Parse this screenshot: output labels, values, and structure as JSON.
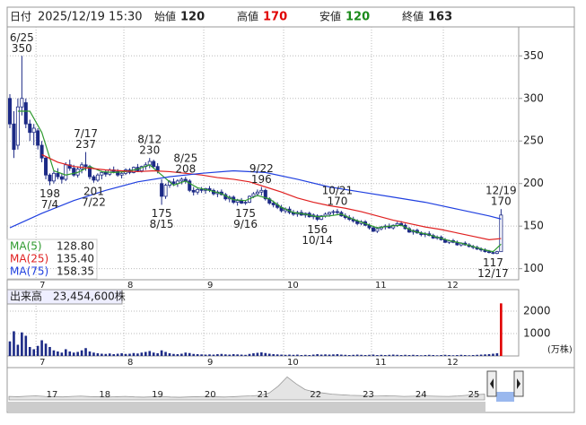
{
  "header": {
    "date_label": "日付",
    "date": "2025/12/19 15:30",
    "open_label": "始値",
    "open": 120,
    "high_label": "高値",
    "high": 170,
    "low_label": "安値",
    "low": 120,
    "close_label": "終値",
    "close": 163
  },
  "chart_data": {
    "type": "candlestick",
    "categories": [
      null,
      null,
      null,
      null,
      null,
      null,
      null,
      "7",
      null,
      null,
      null,
      null,
      null,
      null,
      null,
      null,
      null,
      null,
      null,
      null,
      null,
      null,
      null,
      null,
      null,
      null,
      null,
      null,
      null,
      "8",
      null,
      null,
      null,
      null,
      null,
      null,
      null,
      null,
      null,
      null,
      null,
      null,
      null,
      null,
      null,
      null,
      null,
      null,
      null,
      "9",
      null,
      null,
      null,
      null,
      null,
      null,
      null,
      null,
      null,
      null,
      null,
      null,
      null,
      null,
      null,
      null,
      null,
      null,
      null,
      "10",
      null,
      null,
      null,
      null,
      null,
      null,
      null,
      null,
      null,
      null,
      null,
      null,
      null,
      null,
      null,
      null,
      null,
      null,
      null,
      null,
      null,
      "11",
      null,
      null,
      null,
      null,
      null,
      null,
      null,
      null,
      null,
      null,
      null,
      null,
      null,
      null,
      null,
      null,
      null,
      "12",
      null,
      null,
      null,
      null,
      null,
      null,
      null,
      null,
      null,
      null,
      null,
      null,
      null,
      null
    ],
    "ohlc": [
      [
        300,
        305,
        265,
        270
      ],
      [
        270,
        285,
        230,
        240
      ],
      [
        245,
        300,
        240,
        290
      ],
      [
        290,
        350,
        280,
        300
      ],
      [
        295,
        300,
        265,
        270
      ],
      [
        270,
        275,
        250,
        260
      ],
      [
        260,
        270,
        245,
        265
      ],
      [
        262,
        265,
        240,
        245
      ],
      [
        245,
        250,
        225,
        230
      ],
      [
        230,
        232,
        205,
        210
      ],
      [
        210,
        212,
        198,
        203
      ],
      [
        203,
        215,
        200,
        212
      ],
      [
        212,
        218,
        205,
        208
      ],
      [
        208,
        212,
        200,
        205
      ],
      [
        205,
        225,
        203,
        222
      ],
      [
        222,
        228,
        215,
        218
      ],
      [
        218,
        222,
        208,
        210
      ],
      [
        210,
        220,
        207,
        217
      ],
      [
        217,
        225,
        212,
        222
      ],
      [
        222,
        237,
        215,
        220
      ],
      [
        220,
        222,
        205,
        208
      ],
      [
        208,
        210,
        201,
        204
      ],
      [
        204,
        212,
        202,
        210
      ],
      [
        210,
        215,
        205,
        213
      ],
      [
        213,
        216,
        208,
        211
      ],
      [
        211,
        218,
        209,
        216
      ],
      [
        216,
        220,
        212,
        214
      ],
      [
        214,
        217,
        208,
        210
      ],
      [
        210,
        214,
        206,
        212
      ],
      [
        212,
        218,
        210,
        216
      ],
      [
        216,
        218,
        211,
        213
      ],
      [
        213,
        220,
        212,
        219
      ],
      [
        219,
        223,
        214,
        215
      ],
      [
        215,
        221,
        213,
        220
      ],
      [
        220,
        225,
        216,
        222
      ],
      [
        222,
        230,
        218,
        226
      ],
      [
        226,
        228,
        218,
        220
      ],
      [
        220,
        224,
        212,
        215
      ],
      [
        200,
        205,
        175,
        185
      ],
      [
        185,
        200,
        182,
        198
      ],
      [
        198,
        204,
        195,
        202
      ],
      [
        202,
        206,
        197,
        200
      ],
      [
        200,
        205,
        196,
        203
      ],
      [
        203,
        207,
        199,
        205
      ],
      [
        205,
        208,
        200,
        203
      ],
      [
        203,
        205,
        190,
        192
      ],
      [
        192,
        196,
        186,
        190
      ],
      [
        190,
        195,
        187,
        193
      ],
      [
        193,
        196,
        189,
        192
      ],
      [
        192,
        195,
        188,
        194
      ],
      [
        194,
        197,
        190,
        192
      ],
      [
        192,
        194,
        186,
        188
      ],
      [
        188,
        192,
        184,
        190
      ],
      [
        190,
        193,
        186,
        187
      ],
      [
        187,
        189,
        180,
        182
      ],
      [
        182,
        186,
        178,
        184
      ],
      [
        184,
        186,
        176,
        178
      ],
      [
        178,
        182,
        174,
        180
      ],
      [
        180,
        183,
        176,
        177
      ],
      [
        177,
        180,
        175,
        178
      ],
      [
        178,
        186,
        177,
        185
      ],
      [
        185,
        190,
        183,
        188
      ],
      [
        188,
        193,
        185,
        190
      ],
      [
        190,
        196,
        186,
        192
      ],
      [
        192,
        194,
        180,
        182
      ],
      [
        182,
        184,
        175,
        177
      ],
      [
        177,
        180,
        172,
        175
      ],
      [
        175,
        178,
        170,
        172
      ],
      [
        172,
        175,
        166,
        168
      ],
      [
        168,
        172,
        165,
        170
      ],
      [
        170,
        173,
        164,
        166
      ],
      [
        166,
        169,
        162,
        164
      ],
      [
        164,
        168,
        161,
        166
      ],
      [
        166,
        169,
        162,
        163
      ],
      [
        163,
        166,
        160,
        165
      ],
      [
        165,
        167,
        160,
        161
      ],
      [
        161,
        165,
        158,
        163
      ],
      [
        162,
        164,
        156,
        158
      ],
      [
        158,
        163,
        157,
        162
      ],
      [
        162,
        166,
        160,
        164
      ],
      [
        164,
        167,
        161,
        166
      ],
      [
        166,
        169,
        163,
        167
      ],
      [
        167,
        170,
        164,
        166
      ],
      [
        166,
        168,
        161,
        162
      ],
      [
        162,
        165,
        158,
        160
      ],
      [
        160,
        163,
        156,
        158
      ],
      [
        158,
        161,
        154,
        156
      ],
      [
        156,
        158,
        151,
        153
      ],
      [
        153,
        157,
        151,
        155
      ],
      [
        155,
        157,
        150,
        151
      ],
      [
        151,
        153,
        146,
        148
      ],
      [
        148,
        150,
        143,
        144
      ],
      [
        144,
        149,
        142,
        147
      ],
      [
        147,
        150,
        145,
        149
      ],
      [
        149,
        152,
        146,
        150
      ],
      [
        150,
        153,
        147,
        148
      ],
      [
        148,
        152,
        146,
        151
      ],
      [
        151,
        155,
        149,
        153
      ],
      [
        153,
        156,
        150,
        151
      ],
      [
        151,
        153,
        146,
        147
      ],
      [
        147,
        149,
        142,
        143
      ],
      [
        143,
        146,
        140,
        145
      ],
      [
        145,
        147,
        141,
        142
      ],
      [
        142,
        144,
        138,
        140
      ],
      [
        140,
        143,
        137,
        141
      ],
      [
        141,
        144,
        138,
        139
      ],
      [
        139,
        141,
        135,
        136
      ],
      [
        136,
        139,
        134,
        137
      ],
      [
        137,
        139,
        133,
        134
      ],
      [
        134,
        136,
        130,
        131
      ],
      [
        131,
        134,
        129,
        133
      ],
      [
        133,
        135,
        130,
        131
      ],
      [
        131,
        133,
        127,
        128
      ],
      [
        128,
        131,
        126,
        130
      ],
      [
        130,
        132,
        127,
        128
      ],
      [
        128,
        130,
        125,
        126
      ],
      [
        126,
        128,
        123,
        125
      ],
      [
        125,
        127,
        122,
        123
      ],
      [
        123,
        125,
        120,
        122
      ],
      [
        122,
        124,
        119,
        120
      ],
      [
        120,
        122,
        118,
        119
      ],
      [
        119,
        121,
        117,
        118
      ],
      [
        118,
        121,
        117,
        120
      ],
      [
        120,
        170,
        120,
        163
      ]
    ],
    "up_color": "#ffffff",
    "down_color": "#1c2a86",
    "ylim": [
      87,
      384
    ],
    "yticks": [
      100,
      150,
      200,
      250,
      300,
      350
    ],
    "grid": true,
    "series": [
      {
        "name": "MA(5)",
        "color": "#2e9a2e",
        "latest_label": "128.80",
        "x": [
          2,
          5,
          8,
          11,
          14,
          17,
          20,
          23,
          26,
          29,
          32,
          35,
          38,
          41,
          44,
          47,
          50,
          53,
          56,
          59,
          62,
          65,
          68,
          71,
          74,
          77,
          80,
          83,
          86,
          89,
          92,
          95,
          98,
          101,
          104,
          107,
          110,
          113,
          116,
          119,
          121,
          123
        ],
        "values": [
          285,
          285,
          260,
          215,
          210,
          213,
          220,
          214,
          213,
          214,
          217,
          222,
          210,
          198,
          203,
          195,
          192,
          188,
          181,
          180,
          186,
          182,
          172,
          166,
          164,
          161,
          162,
          164,
          158,
          153,
          148,
          150,
          151,
          144,
          141,
          137,
          133,
          130,
          126,
          122,
          120,
          128.8
        ]
      },
      {
        "name": "MA(25)",
        "color": "#e02020",
        "latest_label": "135.40",
        "x": [
          8,
          12,
          16,
          20,
          24,
          28,
          32,
          36,
          40,
          44,
          48,
          52,
          56,
          60,
          64,
          68,
          72,
          76,
          80,
          84,
          88,
          92,
          96,
          100,
          104,
          108,
          112,
          116,
          120,
          123
        ],
        "values": [
          234,
          225,
          220,
          218,
          216,
          215,
          214,
          215,
          214,
          212,
          210,
          207,
          205,
          202,
          196,
          190,
          183,
          178,
          174,
          171,
          167,
          162,
          157,
          153,
          149,
          146,
          142,
          138,
          134,
          135.4
        ]
      },
      {
        "name": "MA(75)",
        "color": "#2040e0",
        "latest_label": "158.35",
        "x": [
          0,
          8,
          16,
          24,
          32,
          40,
          48,
          56,
          64,
          72,
          80,
          88,
          96,
          104,
          112,
          120,
          123
        ],
        "values": [
          148,
          165,
          180,
          192,
          202,
          208,
          212,
          215,
          213,
          205,
          196,
          190,
          184,
          178,
          170,
          162,
          158.35
        ]
      }
    ],
    "annotations": [
      {
        "label": "6/25",
        "value": 350,
        "x": 3
      },
      {
        "label": "7/17",
        "value": 237,
        "x": 19
      },
      {
        "label": "7/4",
        "value": 198,
        "x": 10
      },
      {
        "label": "7/22",
        "value": 201,
        "x": 21
      },
      {
        "label": "8/12",
        "value": 230,
        "x": 35
      },
      {
        "label": "8/15",
        "value": 175,
        "x": 38
      },
      {
        "label": "8/25",
        "value": 208,
        "x": 44
      },
      {
        "label": "9/16",
        "value": 175,
        "x": 59
      },
      {
        "label": "9/22",
        "value": 196,
        "x": 63
      },
      {
        "label": "10/14",
        "value": 156,
        "x": 77
      },
      {
        "label": "10/21",
        "value": 170,
        "x": 82
      },
      {
        "label": "12/17",
        "value": 117,
        "x": 121
      },
      {
        "label": "12/19",
        "value": 170,
        "x": 123
      }
    ],
    "volume": {
      "title": "出来高　23,454,600株",
      "unit": "(万株)",
      "color": "#1c2a86",
      "last_color": "#e00000",
      "ylim": [
        0,
        2957
      ],
      "yticks": [
        1000,
        2000
      ],
      "values": [
        650,
        1100,
        500,
        1050,
        900,
        400,
        300,
        450,
        700,
        550,
        400,
        250,
        200,
        150,
        300,
        200,
        150,
        180,
        250,
        350,
        200,
        150,
        120,
        100,
        90,
        110,
        80,
        100,
        120,
        90,
        100,
        130,
        110,
        150,
        180,
        220,
        150,
        120,
        250,
        180,
        120,
        90,
        80,
        100,
        150,
        130,
        90,
        80,
        70,
        60,
        70,
        60,
        80,
        90,
        70,
        60,
        80,
        70,
        60,
        50,
        90,
        120,
        140,
        160,
        130,
        100,
        80,
        70,
        60,
        50,
        60,
        50,
        60,
        40,
        50,
        40,
        60,
        80,
        60,
        70,
        60,
        70,
        80,
        60,
        50,
        40,
        50,
        60,
        50,
        40,
        50,
        60,
        40,
        50,
        40,
        50,
        60,
        50,
        40,
        50,
        40,
        50,
        40,
        30,
        40,
        50,
        40,
        30,
        40,
        50,
        40,
        30,
        40,
        50,
        40,
        30,
        40,
        50,
        60,
        70,
        80,
        100,
        120,
        2345
      ]
    },
    "navigator": {
      "labels": [
        "17",
        "18",
        "19",
        "20",
        "21",
        "22",
        "23",
        "24",
        "25"
      ],
      "ylim": [
        0,
        250
      ],
      "values": [
        30,
        28,
        32,
        35,
        30,
        28,
        26,
        30,
        33,
        29,
        27,
        25,
        28,
        30,
        26,
        24,
        27,
        29,
        25,
        23,
        26,
        28,
        30,
        27,
        25,
        28,
        32,
        35,
        40,
        60,
        120,
        200,
        140,
        90,
        70,
        60,
        50,
        45,
        40,
        38,
        35,
        33,
        36,
        34,
        30,
        32,
        35,
        33,
        31,
        30,
        34,
        40,
        45,
        50
      ]
    }
  }
}
